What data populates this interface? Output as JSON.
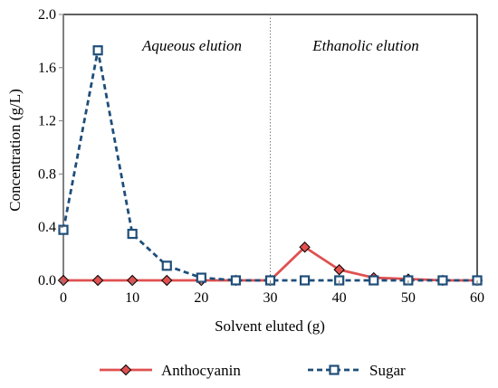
{
  "chart_data": {
    "type": "line",
    "xlabel": "Solvent eluted (g)",
    "ylabel": "Concentration (g/L)",
    "xlim": [
      0,
      60
    ],
    "ylim": [
      0,
      2.0
    ],
    "xticks": [
      "0",
      "10",
      "20",
      "30",
      "40",
      "50",
      "60"
    ],
    "yticks": [
      "0.0",
      "0.4",
      "0.8",
      "1.2",
      "1.6",
      "2.0"
    ],
    "annotations": [
      "Aqueous elution",
      "Ethanolic elution"
    ],
    "divider_x": 30,
    "grid": false,
    "legend_position": "bottom",
    "series": [
      {
        "name": "Anthocyanin",
        "color": "#e05050",
        "marker": "diamond",
        "line_style": "solid",
        "x": [
          0,
          5,
          10,
          15,
          20,
          25,
          30,
          35,
          40,
          45,
          50,
          55,
          60
        ],
        "y": [
          0,
          0,
          0,
          0,
          0,
          0,
          0,
          0.25,
          0.08,
          0.02,
          0.01,
          0,
          0
        ]
      },
      {
        "name": "Sugar",
        "color": "#1f4e79",
        "marker": "square",
        "line_style": "dashed",
        "x": [
          0,
          5,
          10,
          15,
          20,
          25,
          30,
          35,
          40,
          45,
          50,
          55,
          60
        ],
        "y": [
          0.38,
          1.73,
          0.35,
          0.11,
          0.02,
          0,
          0,
          0,
          0,
          0,
          0,
          0,
          0
        ]
      }
    ]
  }
}
